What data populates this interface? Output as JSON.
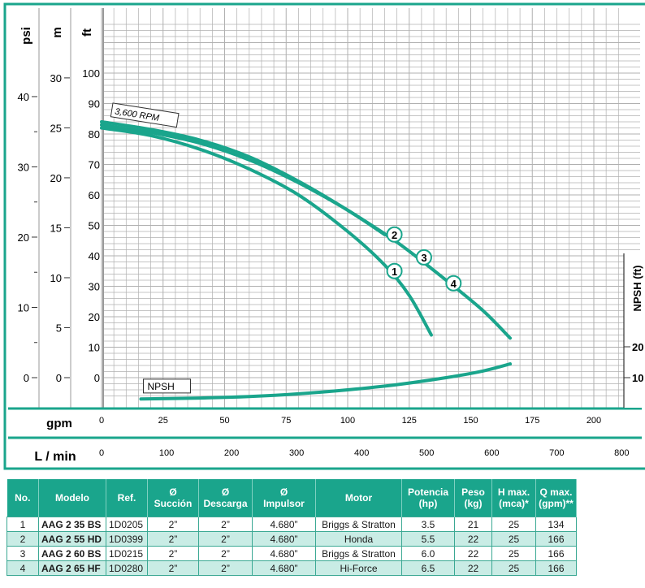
{
  "chart_data": {
    "type": "line",
    "title": "",
    "axes": {
      "left_psi": {
        "label": "psi",
        "ticks": [
          0,
          10,
          20,
          30,
          40
        ]
      },
      "left_m": {
        "label": "m",
        "ticks": [
          0,
          5,
          10,
          15,
          20,
          25,
          30
        ]
      },
      "left_ft": {
        "label": "ft",
        "ticks": [
          0,
          10,
          20,
          30,
          40,
          50,
          60,
          70,
          80,
          90,
          100
        ],
        "ylim": [
          -7,
          118
        ]
      },
      "x_gpm": {
        "label": "gpm",
        "ticks": [
          0,
          25,
          50,
          75,
          100,
          125,
          150,
          175,
          200
        ],
        "xlim": [
          0,
          213
        ]
      },
      "x_lmin": {
        "label": "L / min",
        "ticks": [
          0,
          100,
          200,
          300,
          400,
          500,
          600,
          700,
          800
        ]
      },
      "right_npsh": {
        "label": "NPSH (ft)",
        "ticks": [
          "20",
          "10"
        ]
      }
    },
    "annotations": {
      "rpm": "3,600 RPM",
      "npsh": "NPSH"
    },
    "series": [
      {
        "name": "1",
        "x": [
          0,
          20,
          40,
          60,
          80,
          100,
          115,
          125,
          134
        ],
        "y": [
          82,
          79.5,
          75,
          68.5,
          60,
          48,
          37,
          27,
          14
        ]
      },
      {
        "name": "2",
        "x": [
          0,
          20,
          40,
          60,
          80,
          100,
          115
        ],
        "y": [
          84,
          81.5,
          78,
          72.5,
          64.5,
          55,
          47
        ]
      },
      {
        "name": "3",
        "x": [
          0,
          20,
          40,
          60,
          80,
          100,
          120
        ],
        "y": [
          83,
          80.5,
          77,
          71.5,
          64,
          55,
          44.5
        ]
      },
      {
        "name": "4",
        "x": [
          100,
          120,
          140,
          155,
          166
        ],
        "y": [
          55,
          44.5,
          32,
          22,
          13
        ]
      },
      {
        "name": "NPSH",
        "x": [
          16,
          40,
          60,
          80,
          100,
          120,
          140,
          155,
          166
        ],
        "y": [
          -7,
          -6.7,
          -6.2,
          -5.3,
          -4,
          -2.3,
          0,
          2.2,
          4.5
        ]
      }
    ],
    "curve_labels": [
      {
        "label": "1",
        "x": 119,
        "y": 35
      },
      {
        "label": "2",
        "x": 119,
        "y": 47
      },
      {
        "label": "3",
        "x": 131,
        "y": 39.5
      },
      {
        "label": "4",
        "x": 143,
        "y": 31
      }
    ],
    "grid": true
  },
  "table": {
    "headers": [
      [
        "No."
      ],
      [
        "Modelo"
      ],
      [
        "Ref."
      ],
      [
        "Ø",
        "Succión"
      ],
      [
        "Ø",
        "Descarga"
      ],
      [
        "Ø",
        "Impulsor"
      ],
      [
        "Motor"
      ],
      [
        "Potencia",
        "(hp)"
      ],
      [
        "Peso",
        "(kg)"
      ],
      [
        "H max.",
        "(mca)*"
      ],
      [
        "Q max.",
        "(gpm)**"
      ]
    ],
    "rows": [
      [
        "1",
        "AAG 2 35 BS",
        "1D0205",
        "2”",
        "2”",
        "4.680”",
        "Briggs & Stratton",
        "3.5",
        "21",
        "25",
        "134"
      ],
      [
        "2",
        "AAG 2 55 HD",
        "1D0399",
        "2”",
        "2”",
        "4.680”",
        "Honda",
        "5.5",
        "22",
        "25",
        "166"
      ],
      [
        "3",
        "AAG 2 60 BS",
        "1D0215",
        "2”",
        "2”",
        "4.680”",
        "Briggs & Stratton",
        "6.0",
        "22",
        "25",
        "166"
      ],
      [
        "4",
        "AAG 2 65 HF",
        "1D0280",
        "2”",
        "2”",
        "4.680”",
        "Hi-Force",
        "6.5",
        "22",
        "25",
        "166"
      ]
    ]
  },
  "colors": {
    "accent": "#1aa58c",
    "grid": "#b0b0b0",
    "curve": "#1aa58c",
    "row_alt": "#c9ece5"
  }
}
